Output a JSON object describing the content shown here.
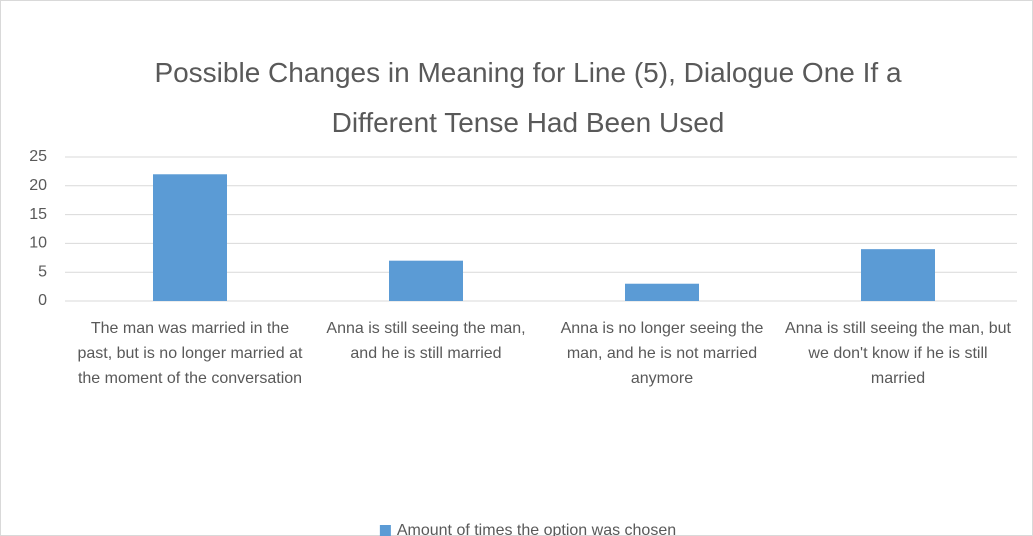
{
  "chart_data": {
    "type": "bar",
    "title": "Possible Changes in Meaning for Line (5), Dialogue One If a Different Tense Had Been Used",
    "categories": [
      "The man was married in the past, but is no longer married at the moment of the conversation",
      "Anna is still seeing the man, and he is still married",
      "Anna is no longer seeing the man, and he is not married anymore",
      "Anna is still seeing the man, but we don't know if he is still married"
    ],
    "series": [
      {
        "name": "Amount of times the option was chosen",
        "color": "#5b9bd5",
        "values": [
          22,
          7,
          3,
          9
        ]
      }
    ],
    "ylim": [
      0,
      25
    ],
    "yticks": [
      0,
      5,
      10,
      15,
      20,
      25
    ],
    "grid": true,
    "legend": "bottom"
  }
}
